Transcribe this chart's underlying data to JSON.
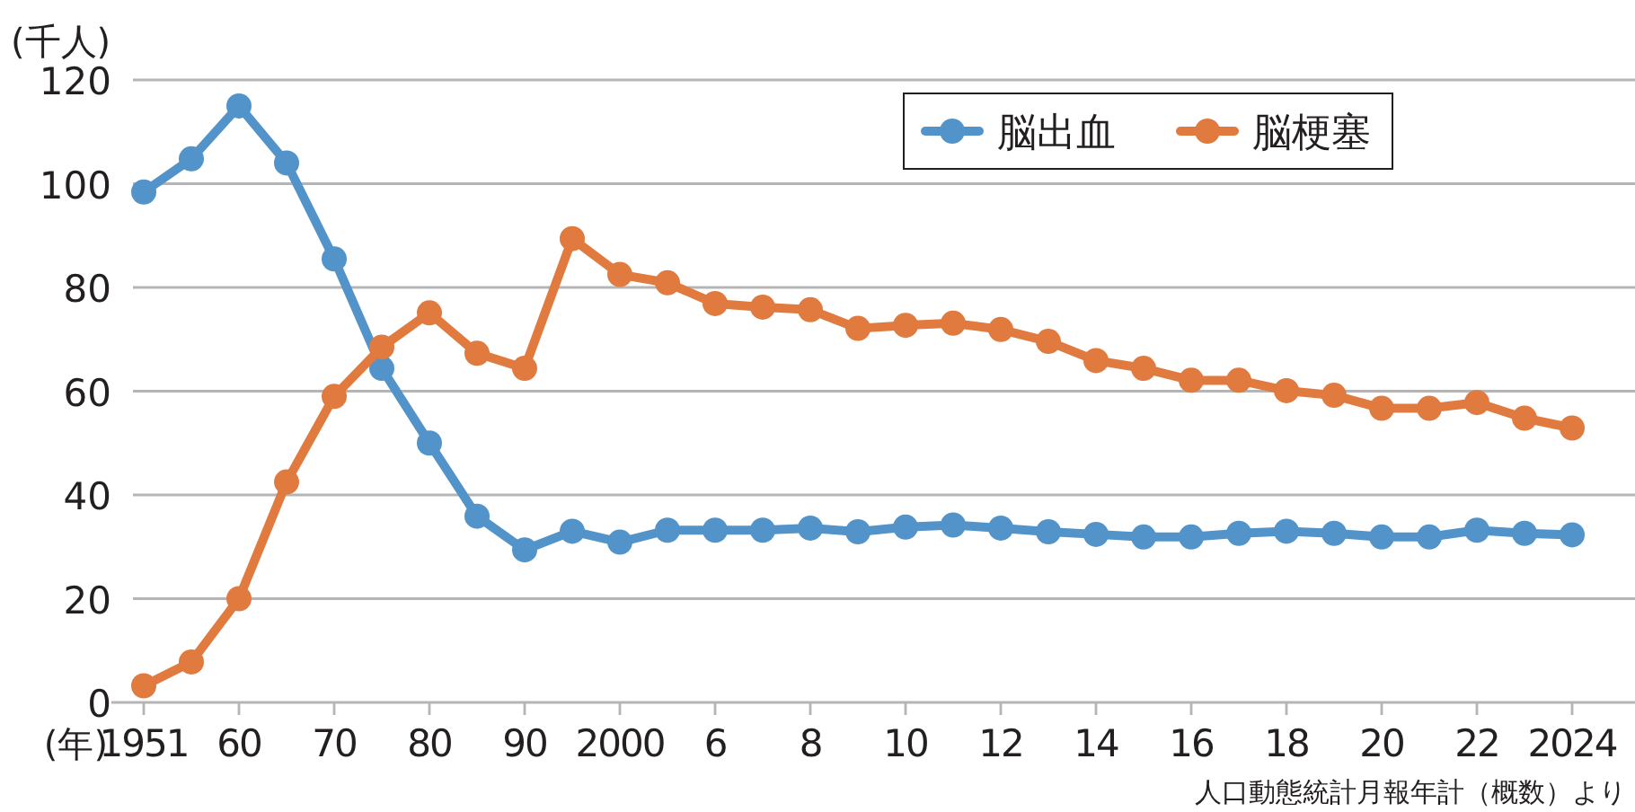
{
  "chart_data": {
    "type": "line",
    "xlabel": "(年)",
    "ylabel": "(千人)",
    "categories": [
      "1951",
      null,
      "60",
      null,
      "70",
      null,
      "80",
      null,
      "90",
      null,
      "2000",
      null,
      "6",
      null,
      "8",
      null,
      "10",
      null,
      "12",
      null,
      "14",
      null,
      "16",
      null,
      "18",
      null,
      "20",
      null,
      "22",
      null,
      "2024"
    ],
    "series": [
      {
        "name": "脳出血",
        "color": "#5294c9",
        "values": [
          98.4,
          104.8,
          115,
          104,
          85.5,
          64.4,
          50,
          35.9,
          29.4,
          33,
          30.9,
          33.2,
          33.2,
          33.2,
          33.6,
          32.9,
          33.8,
          34.2,
          33.6,
          32.9,
          32.4,
          31.9,
          31.9,
          32.6,
          33,
          32.6,
          31.9,
          31.9,
          33.2,
          32.6,
          32.3
        ]
      },
      {
        "name": "脳梗塞",
        "color": "#e07a3f",
        "values": [
          3.2,
          7.8,
          20,
          42.5,
          59,
          68.5,
          75.1,
          67.3,
          64.4,
          89.4,
          82.5,
          80.9,
          76.9,
          76.2,
          75.7,
          72.1,
          72.7,
          73.1,
          71.9,
          69.6,
          65.9,
          64.4,
          62.1,
          62.1,
          60.1,
          59.2,
          56.7,
          56.7,
          57.8,
          54.8,
          52.9
        ]
      }
    ],
    "ylim": [
      0,
      120
    ],
    "yticks": [
      0,
      20,
      40,
      60,
      80,
      100,
      120
    ],
    "grid": "y",
    "legend": "top right",
    "marker": "circle",
    "line_style": "solid",
    "annotations": [
      "人口動態統計月報年計（概数）より"
    ]
  }
}
